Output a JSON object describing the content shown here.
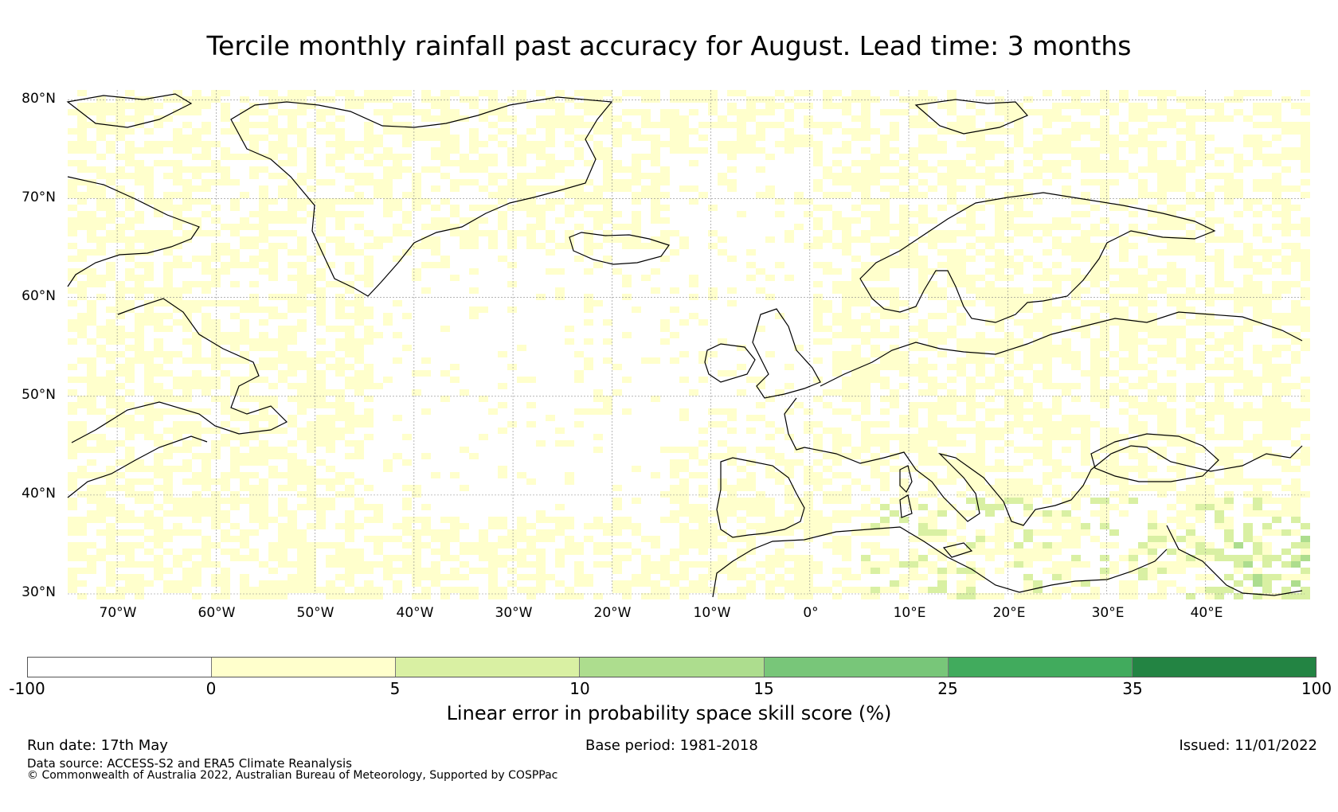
{
  "title": "Tercile monthly rainfall past accuracy for August. Lead time: 3 months",
  "map": {
    "lat_ticks": [
      "80°N",
      "70°N",
      "60°N",
      "50°N",
      "40°N",
      "30°N"
    ],
    "lon_ticks": [
      "70°W",
      "60°W",
      "50°W",
      "40°W",
      "30°W",
      "20°W",
      "10°W",
      "0°",
      "10°E",
      "20°E",
      "30°E",
      "40°E"
    ],
    "lon_range": [
      -75,
      50
    ],
    "lat_range": [
      30,
      81
    ]
  },
  "colorbar": {
    "ticks": [
      "-100",
      "0",
      "5",
      "10",
      "15",
      "25",
      "35",
      "100"
    ],
    "colors": [
      "#ffffff",
      "#ffffcc",
      "#d9f0a3",
      "#addd8e",
      "#78c679",
      "#41ab5d",
      "#238443"
    ],
    "label": "Linear error in probability space skill score (%)"
  },
  "footer": {
    "run_date": "Run date: 17th May",
    "base_period": "Base period: 1981-2018",
    "issued": "Issued: 11/01/2022",
    "data_source": "Data source: ACCESS-S2 and ERA5 Climate Reanalysis",
    "copyright": "© Commonwealth of Australia 2022, Australian Bureau of Meteorology, Supported by COSPPac"
  }
}
